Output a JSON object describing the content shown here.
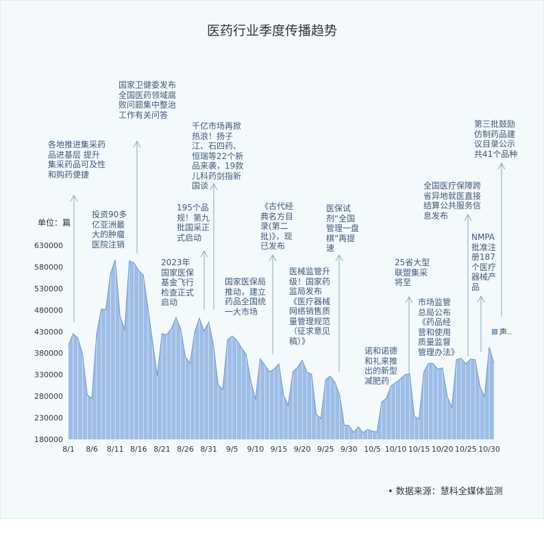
{
  "title": "医药行业季度传播趋势",
  "unit_label": "单位：篇",
  "source": "•  数据来源：慧科全媒体监测",
  "colors": {
    "area_fill": "#9dbde6",
    "area_stroke": "#6d93c8",
    "annotation_text": "#3f5878",
    "arrow": "#86a9b8"
  },
  "chart_data": {
    "type": "area",
    "title": "医药行业季度传播趋势",
    "ylabel": "单位：篇",
    "ylim": [
      180000,
      630000
    ],
    "yticks": [
      180000,
      230000,
      280000,
      330000,
      380000,
      430000,
      480000,
      530000,
      580000,
      630000
    ],
    "xtick_labels": [
      "8/1",
      "8/6",
      "8/11",
      "8/16",
      "8/21",
      "8/26",
      "8/31",
      "9/5",
      "9/10",
      "9/15",
      "9/20",
      "9/25",
      "9/30",
      "10/5",
      "10/10",
      "10/15",
      "10/20",
      "10/25",
      "10/30"
    ],
    "x_start": "8/1",
    "x_end": "10/31",
    "legend": {
      "label": "声..",
      "position": "right"
    },
    "grid": false,
    "series": [
      {
        "name": "声..",
        "values": [
          399000,
          425000,
          415000,
          378000,
          283000,
          275000,
          423000,
          482000,
          482000,
          566000,
          597000,
          468000,
          434000,
          594000,
          589000,
          572000,
          561000,
          484000,
          405000,
          328000,
          425000,
          423000,
          437000,
          463000,
          437000,
          371000,
          357000,
          429000,
          461000,
          431000,
          452000,
          400000,
          307000,
          296000,
          411000,
          420000,
          410000,
          393000,
          377000,
          315000,
          273000,
          367000,
          352000,
          337000,
          343000,
          355000,
          283000,
          259000,
          337000,
          347000,
          364000,
          336000,
          331000,
          238000,
          228000,
          318000,
          327000,
          312000,
          283000,
          213000,
          212000,
          196000,
          209000,
          196000,
          203000,
          199000,
          197000,
          267000,
          275000,
          304000,
          312000,
          320000,
          330000,
          332000,
          233000,
          228000,
          336000,
          356000,
          356000,
          343000,
          346000,
          281000,
          254000,
          365000,
          368000,
          355000,
          366000,
          365000,
          304000,
          278000,
          394000,
          357000
        ]
      }
    ],
    "annotations": [
      "各地推进集采药品进基层 提升集采药品可及性和购药便捷",
      "投资90多亿亚洲最大的肿瘤医院注销",
      "国家卫健委发布全国医药领域腐败问题集中整治工作有关问答",
      "195个品规！第九批国采正式启动",
      "2023年国家医保基金飞行检查正式启动",
      "千亿市场再掀热浪！扬子江、石四药、恒瑞等22个新品来袭，19款儿科药剑指新国谈",
      "国家医保局推动，建立药品全国统一大市场",
      "《古代经典名方目录(第二批)》，现已发布",
      "医械监管升级！国家药监局发布《医疗器械网络销售质量管理规范（征求意见稿）》",
      "医保试剂“全国管理一盘棋”再提速",
      "诺和诺德和礼来推出的新型减肥药",
      "25省大型联盟集采将至",
      "市场监管总局公布《药品经营和使用质量监督管理办法》",
      "全国医疗保障跨省异地就医直接结算公共服务信息发布",
      "NMPA批准注册187个医疗器械产品",
      "第三批鼓励仿制药品建议目录公示共41个品种"
    ]
  }
}
